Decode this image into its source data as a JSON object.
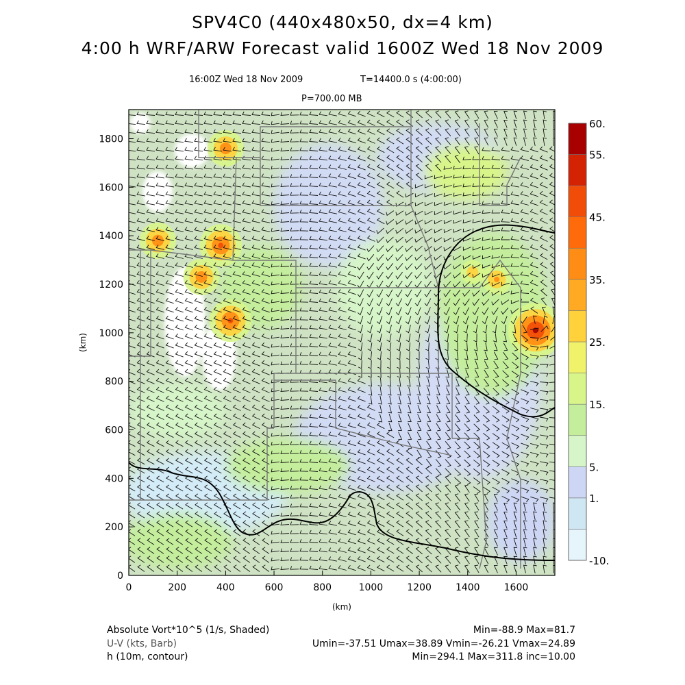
{
  "header": {
    "title_line1": "SPV4C0 (440x480x50, dx=4 km)",
    "title_line2": "4:00 h WRF/ARW Forecast valid 1600Z Wed 18 Nov 2009",
    "valid_time": "16:00Z Wed 18 Nov 2009",
    "sim_time": "T=14400.0 s (4:00:00)",
    "level": "P=700.00 MB"
  },
  "chart_data": {
    "type": "heatmap",
    "xlabel": "(km)",
    "ylabel": "(km)",
    "xlim": [
      0,
      1760
    ],
    "ylim": [
      0,
      1920
    ],
    "x_ticks": [
      "0",
      "200",
      "400",
      "600",
      "800",
      "1000",
      "1200",
      "1400",
      "1600"
    ],
    "y_ticks": [
      "0",
      "200",
      "400",
      "600",
      "800",
      "1000",
      "1200",
      "1400",
      "1600",
      "1800"
    ],
    "colorbar": {
      "levels": [
        -10,
        -5,
        1,
        5,
        10,
        15,
        20,
        25,
        30,
        35,
        40,
        45,
        50,
        55,
        60
      ],
      "labels": [
        "-10.",
        "1.",
        "5.",
        "15.",
        "25.",
        "35.",
        "45.",
        "55.",
        "60."
      ],
      "colors": [
        "#e6f4fb",
        "#cfe6f3",
        "#cdd6f4",
        "#d6f5c8",
        "#c4ee9c",
        "#d8f58a",
        "#f0f26a",
        "#ffd23c",
        "#ffaa22",
        "#ff8c14",
        "#ff6a0a",
        "#f24d08",
        "#d42204",
        "#a80000"
      ]
    },
    "vort_maxima": [
      {
        "x": 1680,
        "y": 1010,
        "value": 55
      },
      {
        "x": 380,
        "y": 1360,
        "value": 45
      },
      {
        "x": 420,
        "y": 1050,
        "value": 45
      },
      {
        "x": 300,
        "y": 1230,
        "value": 40
      },
      {
        "x": 120,
        "y": 1380,
        "value": 40
      },
      {
        "x": 400,
        "y": 1760,
        "value": 40
      },
      {
        "x": 1520,
        "y": 1220,
        "value": 35
      },
      {
        "x": 1420,
        "y": 1250,
        "value": 30
      }
    ],
    "h_contour_interval": 10.0
  },
  "footer": {
    "field1_label": "Absolute Vort*10^5 (1/s, Shaded)",
    "field1_stats": "Min=-88.9 Max=81.7",
    "field2_label": "U-V (kts, Barb)",
    "field2_stats": "Umin=-37.51 Umax=38.89 Vmin=-26.21 Vmax=24.89",
    "field3_label": "h (10m, contour)",
    "field3_stats": "Min=294.1 Max=311.8 inc=10.00"
  }
}
